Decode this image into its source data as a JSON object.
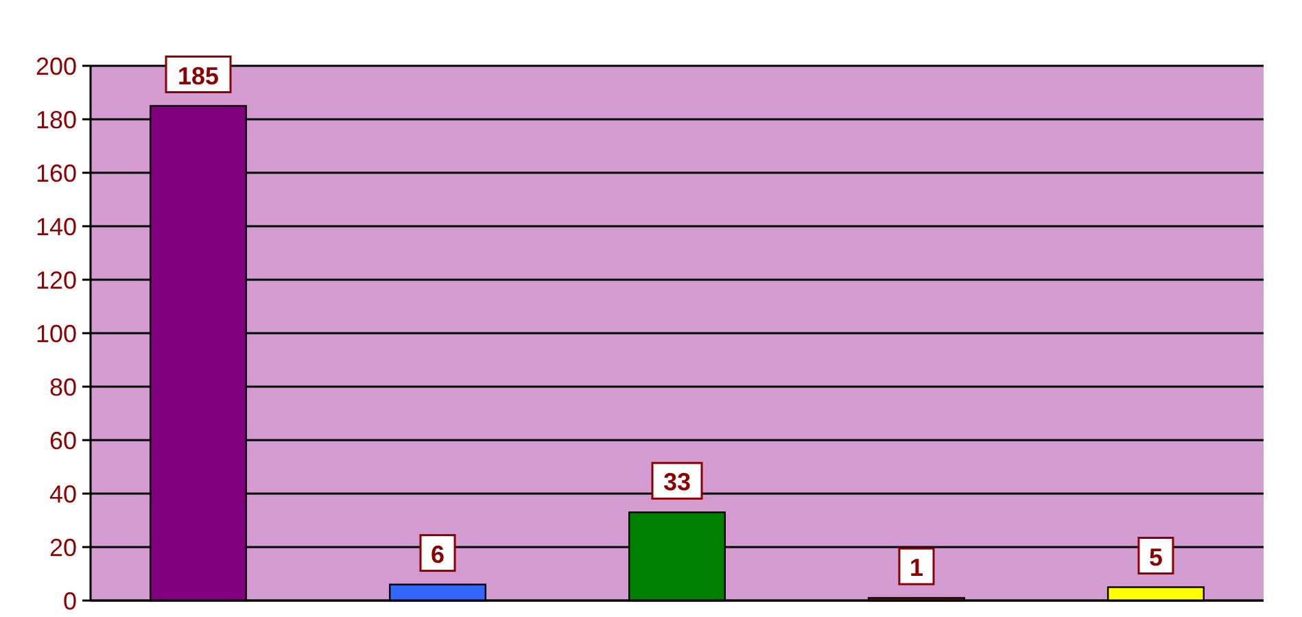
{
  "chart_data": {
    "type": "bar",
    "categories": [
      null,
      null,
      null,
      null,
      null
    ],
    "values": [
      185,
      6,
      33,
      1,
      5
    ],
    "colors": [
      "#800080",
      "#3366ff",
      "#008000",
      "#cc0000",
      "#ffff00"
    ],
    "ylim": [
      0,
      200
    ],
    "yticks": [
      0,
      20,
      40,
      60,
      80,
      100,
      120,
      140,
      160,
      180,
      200
    ],
    "grid": "y",
    "data_labels": true
  }
}
